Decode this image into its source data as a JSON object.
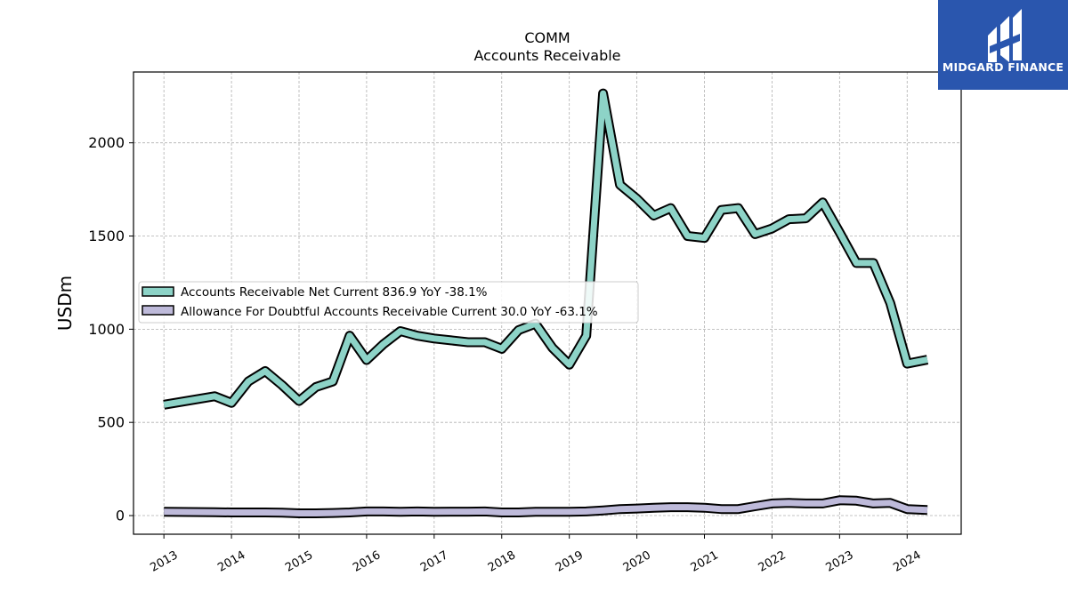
{
  "brand": {
    "name": "MIDGARD FINANCE",
    "bg_color": "#2a56ae"
  },
  "chart_data": {
    "type": "line",
    "title": "COMM",
    "subtitle": "Accounts Receivable",
    "xlabel": "",
    "ylabel": "USDm",
    "xlim": [
      2012.55,
      2024.8
    ],
    "ylim": [
      -100,
      2380
    ],
    "yticks": [
      0,
      500,
      1000,
      1500,
      2000
    ],
    "xticks": [
      "2013",
      "2014",
      "2015",
      "2016",
      "2017",
      "2018",
      "2019",
      "2020",
      "2021",
      "2022",
      "2023",
      "2024"
    ],
    "grid": true,
    "legend_position": "center-left",
    "series": [
      {
        "name": "Accounts Receivable Net Current",
        "legend_label": "Accounts Receivable Net Current  836.9 YoY -38.1%",
        "color": "#8dd3c7",
        "x": [
          2013.0,
          2013.75,
          2014.0,
          2014.25,
          2014.5,
          2014.75,
          2015.0,
          2015.25,
          2015.5,
          2015.75,
          2016.0,
          2016.25,
          2016.5,
          2016.75,
          2017.0,
          2017.25,
          2017.5,
          2017.75,
          2018.0,
          2018.25,
          2018.5,
          2018.75,
          2019.0,
          2019.25,
          2019.5,
          2019.75,
          2020.0,
          2020.25,
          2020.5,
          2020.75,
          2021.0,
          2021.25,
          2021.5,
          2021.75,
          2022.0,
          2022.25,
          2022.5,
          2022.75,
          2023.0,
          2023.25,
          2023.5,
          2023.75,
          2024.0,
          2024.3
        ],
        "values": [
          595,
          640,
          605,
          720,
          775,
          700,
          615,
          690,
          720,
          965,
          835,
          920,
          990,
          965,
          950,
          940,
          930,
          930,
          895,
          995,
          1030,
          900,
          810,
          965,
          2265,
          1775,
          1700,
          1610,
          1650,
          1500,
          1490,
          1640,
          1650,
          1510,
          1540,
          1590,
          1595,
          1680,
          1520,
          1355,
          1355,
          1140,
          815,
          836.9
        ]
      },
      {
        "name": "Allowance For Doubtful Accounts Receivable Current",
        "legend_label": "Allowance For Doubtful Accounts Receivable Current  30.0 YoY -63.1%",
        "color": "#bebada",
        "x": [
          2013.0,
          2013.75,
          2014.0,
          2014.25,
          2014.5,
          2014.75,
          2015.0,
          2015.25,
          2015.5,
          2015.75,
          2016.0,
          2016.25,
          2016.5,
          2016.75,
          2017.0,
          2017.25,
          2017.5,
          2017.75,
          2018.0,
          2018.25,
          2018.5,
          2018.75,
          2019.0,
          2019.25,
          2019.5,
          2019.75,
          2020.0,
          2020.25,
          2020.5,
          2020.75,
          2021.0,
          2021.25,
          2021.5,
          2021.75,
          2022.0,
          2022.25,
          2022.5,
          2022.75,
          2023.0,
          2023.25,
          2023.5,
          2023.75,
          2024.0,
          2024.3
        ],
        "values": [
          20,
          18,
          17,
          17,
          17,
          16,
          12,
          12,
          14,
          17,
          22,
          22,
          20,
          22,
          20,
          21,
          21,
          22,
          17,
          17,
          20,
          20,
          20,
          22,
          28,
          35,
          38,
          42,
          45,
          45,
          42,
          35,
          35,
          50,
          65,
          68,
          65,
          65,
          82,
          80,
          65,
          68,
          35,
          30.0
        ]
      }
    ]
  }
}
